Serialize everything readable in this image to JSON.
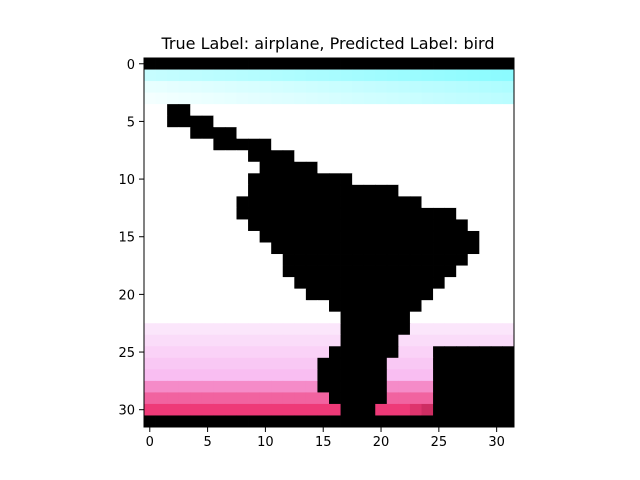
{
  "chart_data": {
    "type": "heatmap",
    "title": "True Label: airplane, Predicted Label: bird",
    "xlabel": "",
    "ylabel": "",
    "rows": 32,
    "cols": 32,
    "x_ticks": [
      0,
      5,
      10,
      15,
      20,
      25,
      30
    ],
    "y_ticks": [
      0,
      5,
      10,
      15,
      20,
      25,
      30
    ],
    "tick_labels_x": [
      "0",
      "5",
      "10",
      "15",
      "20",
      "25",
      "30"
    ],
    "tick_labels_y": [
      "0",
      "5",
      "10",
      "15",
      "20",
      "25",
      "30"
    ],
    "xlim": [
      -0.5,
      31.5
    ],
    "ylim": [
      31.5,
      -0.5
    ],
    "grid": false,
    "colors": {
      "background": "#ffffff",
      "sky_top": "#80fbff",
      "object": "#000000",
      "ground_light": "#f8b4f0",
      "ground_dark": "#ee3a78",
      "ground_darkest": "#5a0015"
    }
  }
}
